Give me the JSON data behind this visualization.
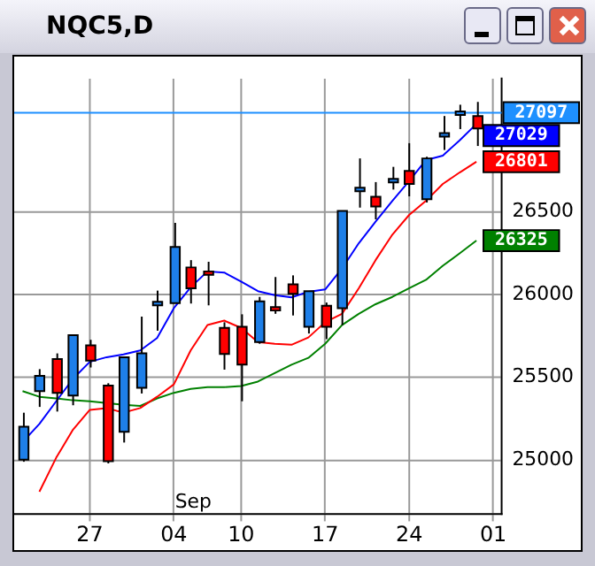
{
  "chart_data": {
    "type": "candlestick",
    "title": "NQC5,D",
    "categories": [
      null,
      null,
      null,
      null,
      "27",
      null,
      null,
      null,
      null,
      "04",
      null,
      null,
      null,
      "10",
      null,
      null,
      null,
      null,
      "17",
      null,
      null,
      null,
      null,
      "24",
      null,
      null,
      null,
      null,
      "01"
    ],
    "ohlc": [
      [
        25003,
        25286,
        24990,
        25201
      ],
      [
        25416,
        25549,
        25321,
        25508
      ],
      [
        25610,
        25644,
        25293,
        25406
      ],
      [
        25389,
        25754,
        25331,
        25754
      ],
      [
        25692,
        25726,
        25559,
        25600
      ],
      [
        25450,
        25464,
        24980,
        24993
      ],
      [
        25171,
        25621,
        25106,
        25621
      ],
      [
        25436,
        25866,
        25402,
        25644
      ],
      [
        25948,
        26023,
        25781,
        25955
      ],
      [
        25948,
        26432,
        25948,
        26286
      ],
      [
        26163,
        26207,
        25945,
        26037
      ],
      [
        26139,
        26197,
        25934,
        26129
      ],
      [
        25798,
        25832,
        25546,
        25641
      ],
      [
        25805,
        25880,
        25355,
        25576
      ],
      [
        25713,
        25985,
        25702,
        25958
      ],
      [
        25924,
        26105,
        25883,
        25910
      ],
      [
        26061,
        26115,
        25873,
        26003
      ],
      [
        25805,
        26020,
        25764,
        26020
      ],
      [
        25931,
        25951,
        25730,
        25805
      ],
      [
        25917,
        26504,
        25815,
        26504
      ],
      [
        26637,
        26821,
        26524,
        26644
      ],
      [
        26589,
        26678,
        26453,
        26531
      ],
      [
        26691,
        26770,
        26633,
        26698
      ],
      [
        26746,
        26913,
        26592,
        26667
      ],
      [
        26575,
        26831,
        26555,
        26821
      ],
      [
        26954,
        27077,
        26872,
        26974
      ],
      [
        27090,
        27145,
        26998,
        27104
      ],
      [
        27077,
        27162,
        26896,
        27002
      ],
      null
    ],
    "colors": [
      "#1e7fe8",
      "#1e7fe8",
      "#ff0000",
      "#1e7fe8",
      "#ff0000",
      "#ff0000",
      "#1e7fe8",
      "#1e7fe8",
      "#1e7fe8",
      "#1e7fe8",
      "#ff0000",
      "#ff0000",
      "#ff0000",
      "#ff0000",
      "#1e7fe8",
      "#ff0000",
      "#ff0000",
      "#1e7fe8",
      "#ff0000",
      "#1e7fe8",
      "#1e7fe8",
      "#ff0000",
      "#1e7fe8",
      "#ff0000",
      "#1e7fe8",
      "#1e7fe8",
      "#1e7fe8",
      "#ff0000",
      null
    ],
    "series": [
      {
        "type": "line",
        "color": "#0000ff",
        "values": [
          25109,
          25218,
          25355,
          25491,
          25593,
          25621,
          25638,
          25662,
          25737,
          25917,
          26043,
          26139,
          26132,
          26078,
          26020,
          25996,
          25982,
          26016,
          26030,
          26156,
          26309,
          26439,
          26565,
          26685,
          26811,
          26838,
          26930,
          27029,
          null
        ],
        "value_labels": [
          null,
          null,
          null,
          null,
          null,
          null,
          null,
          null,
          null,
          null,
          null,
          null,
          null,
          null,
          null,
          null,
          null,
          null,
          null,
          null,
          null,
          null,
          null,
          null,
          null,
          null,
          null,
          "27029",
          null
        ]
      },
      {
        "type": "line",
        "color": "#ff0000",
        "values": [
          null,
          24809,
          25014,
          25184,
          25303,
          25314,
          25286,
          25314,
          25382,
          25457,
          25662,
          25815,
          25842,
          25798,
          25713,
          25702,
          25696,
          25740,
          25832,
          25883,
          26037,
          26207,
          26361,
          26480,
          26565,
          26667,
          26736,
          26801,
          null
        ],
        "value_labels": [
          null,
          null,
          null,
          null,
          null,
          null,
          null,
          null,
          null,
          null,
          null,
          null,
          null,
          null,
          null,
          null,
          null,
          null,
          null,
          null,
          null,
          null,
          null,
          null,
          null,
          null,
          null,
          "26801",
          null
        ]
      },
      {
        "type": "line",
        "color": "#008000",
        "values": [
          25416,
          25382,
          25372,
          25361,
          25355,
          25344,
          25334,
          25327,
          25372,
          25406,
          25430,
          25440,
          25440,
          25447,
          25474,
          25525,
          25576,
          25617,
          25702,
          25815,
          25883,
          25941,
          25985,
          26037,
          26088,
          26173,
          26248,
          26325,
          null
        ],
        "value_labels": [
          null,
          null,
          null,
          null,
          null,
          null,
          null,
          null,
          null,
          null,
          null,
          null,
          null,
          null,
          null,
          null,
          null,
          null,
          null,
          null,
          null,
          null,
          null,
          null,
          null,
          null,
          null,
          "26325",
          null
        ]
      }
    ],
    "ylim": [
      24673,
      27302
    ],
    "yticks": [
      25000,
      25500,
      26000,
      26500
    ],
    "ref_lines": [
      {
        "axis": "y",
        "value": 27097,
        "label": "27097",
        "color": "#1e90ff"
      }
    ],
    "annotations": [
      "Sep"
    ],
    "grid": "xy",
    "legend": false
  }
}
